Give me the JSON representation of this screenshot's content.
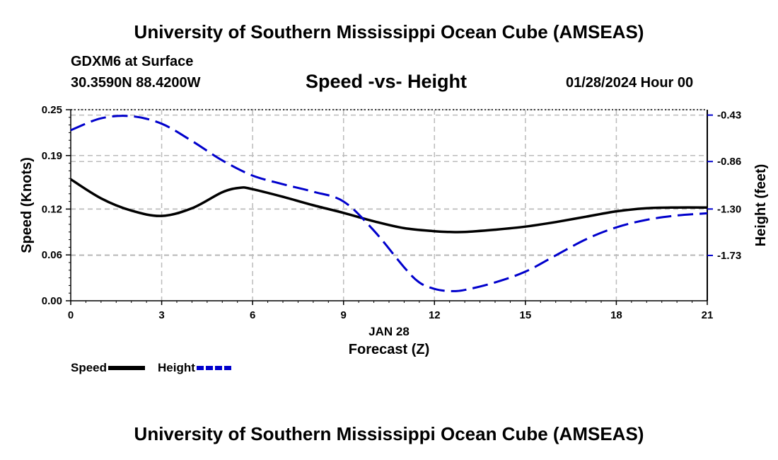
{
  "header": {
    "title": "University of Southern Mississippi Ocean Cube (AMSEAS)",
    "station": "GDXM6 at Surface",
    "coordinates": "30.3590N  88.4200W",
    "chart_title": "Speed -vs- Height",
    "date": "01/28/2024 Hour 00"
  },
  "footer": {
    "title": "University of Southern Mississippi Ocean Cube (AMSEAS)"
  },
  "legend": {
    "speed_label": "Speed",
    "height_label": "Height"
  },
  "colors": {
    "speed": "#000000",
    "height": "#0000cc",
    "grid": "#bbbbbb"
  },
  "chart_data": {
    "type": "line",
    "title": "Speed -vs- Height",
    "xlabel": "Forecast (Z)",
    "xsublabel": "JAN 28",
    "ylabel": "Speed (Knots)",
    "y2label": "Height (feet)",
    "xlim": [
      0,
      21
    ],
    "ylim": [
      0,
      0.25
    ],
    "y2lim": [
      -2.15,
      -0.38
    ],
    "xticks": [
      0,
      3,
      6,
      9,
      12,
      15,
      18,
      21
    ],
    "yticks": [
      0.0,
      0.06,
      0.12,
      0.19,
      0.25
    ],
    "ytick_labels": [
      "0.00",
      "0.06",
      "0.12",
      "0.19",
      "0.25"
    ],
    "y2ticks": [
      -0.43,
      -0.86,
      -1.3,
      -1.73
    ],
    "y2tick_labels": [
      "-0.43",
      "-0.86",
      "-1.30",
      "-1.73"
    ],
    "grid": true,
    "series": [
      {
        "name": "Speed",
        "axis": "left",
        "style": "solid",
        "x": [
          0,
          1,
          2,
          3,
          4,
          5,
          5.6,
          6,
          7,
          8,
          9,
          10,
          11,
          12,
          12.5,
          13,
          14,
          15,
          16,
          17,
          18,
          19,
          20,
          21
        ],
        "values": [
          0.159,
          0.134,
          0.118,
          0.111,
          0.121,
          0.142,
          0.148,
          0.146,
          0.136,
          0.125,
          0.115,
          0.104,
          0.095,
          0.091,
          0.09,
          0.09,
          0.093,
          0.097,
          0.103,
          0.11,
          0.117,
          0.121,
          0.122,
          0.122
        ]
      },
      {
        "name": "Height",
        "axis": "right",
        "style": "dashed",
        "x": [
          0,
          1,
          2,
          3,
          4,
          5,
          6,
          7,
          8,
          9,
          10,
          11,
          11.5,
          12,
          12.5,
          13,
          14,
          15,
          16,
          17,
          18,
          19,
          20,
          21
        ],
        "values": [
          -0.57,
          -0.46,
          -0.44,
          -0.51,
          -0.67,
          -0.85,
          -0.99,
          -1.07,
          -1.14,
          -1.23,
          -1.5,
          -1.84,
          -1.98,
          -2.04,
          -2.06,
          -2.05,
          -1.98,
          -1.88,
          -1.73,
          -1.58,
          -1.47,
          -1.4,
          -1.36,
          -1.34
        ]
      }
    ]
  }
}
